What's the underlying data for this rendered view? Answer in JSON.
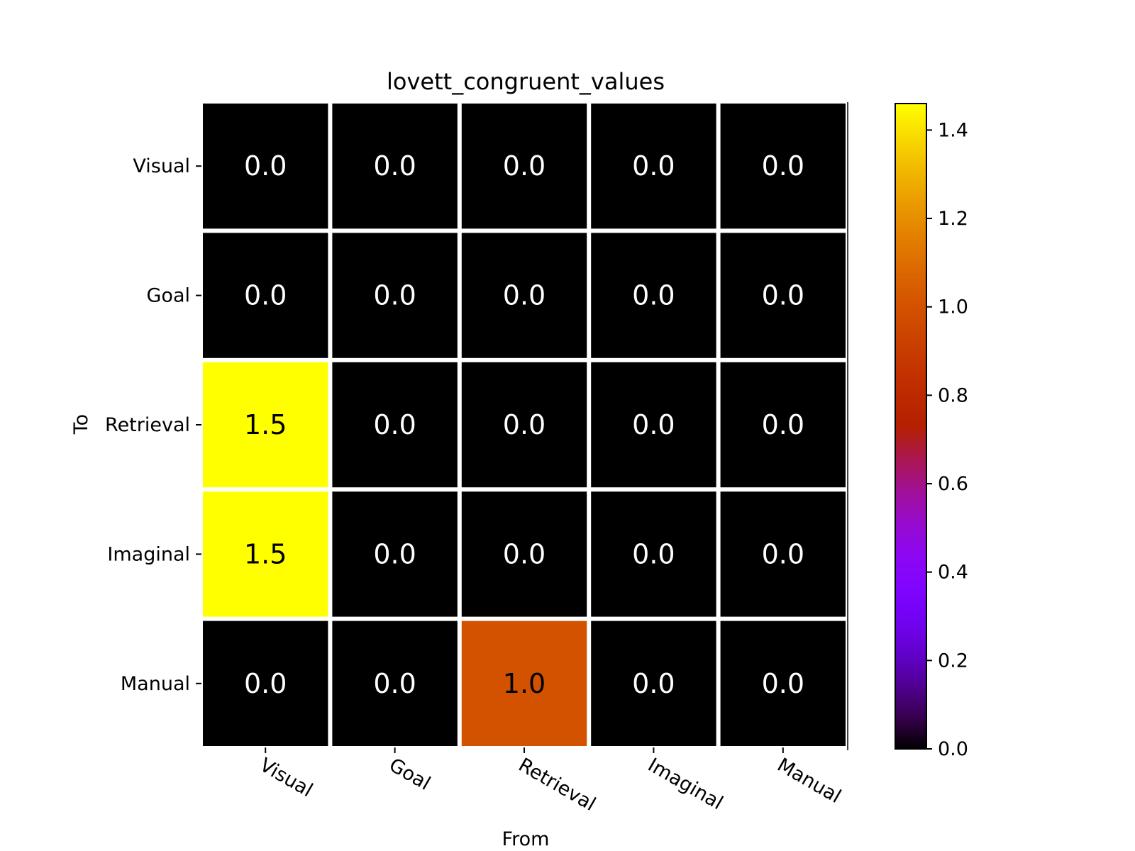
{
  "chart_data": {
    "type": "heatmap",
    "title": "lovett_congruent_values",
    "xlabel": "From",
    "ylabel": "To",
    "x_categories": [
      "Visual",
      "Goal",
      "Retrieval",
      "Imaginal",
      "Manual"
    ],
    "y_categories": [
      "Visual",
      "Goal",
      "Retrieval",
      "Imaginal",
      "Manual"
    ],
    "values": [
      [
        0.0,
        0.0,
        0.0,
        0.0,
        0.0
      ],
      [
        0.0,
        0.0,
        0.0,
        0.0,
        0.0
      ],
      [
        1.46,
        0.0,
        0.0,
        0.0,
        0.0
      ],
      [
        1.46,
        0.0,
        0.0,
        0.0,
        0.0
      ],
      [
        0.0,
        0.0,
        1.0,
        0.0,
        0.0
      ]
    ],
    "cell_labels": [
      [
        "0.0",
        "0.0",
        "0.0",
        "0.0",
        "0.0"
      ],
      [
        "0.0",
        "0.0",
        "0.0",
        "0.0",
        "0.0"
      ],
      [
        "1.5",
        "0.0",
        "0.0",
        "0.0",
        "0.0"
      ],
      [
        "1.5",
        "0.0",
        "0.0",
        "0.0",
        "0.0"
      ],
      [
        "0.0",
        "0.0",
        "1.0",
        "0.0",
        "0.0"
      ]
    ],
    "colormap": "gnuplot",
    "colorbar": {
      "range": [
        0.0,
        1.46
      ],
      "ticks": [
        0.0,
        0.2,
        0.4,
        0.6,
        0.8,
        1.0,
        1.2,
        1.4
      ],
      "tick_labels": [
        "0.0",
        "0.2",
        "0.4",
        "0.6",
        "0.8",
        "1.0",
        "1.2",
        "1.4"
      ]
    },
    "x_tick_rotation": "slanted downward to the right",
    "grid": false,
    "legend": "colorbar at right"
  }
}
